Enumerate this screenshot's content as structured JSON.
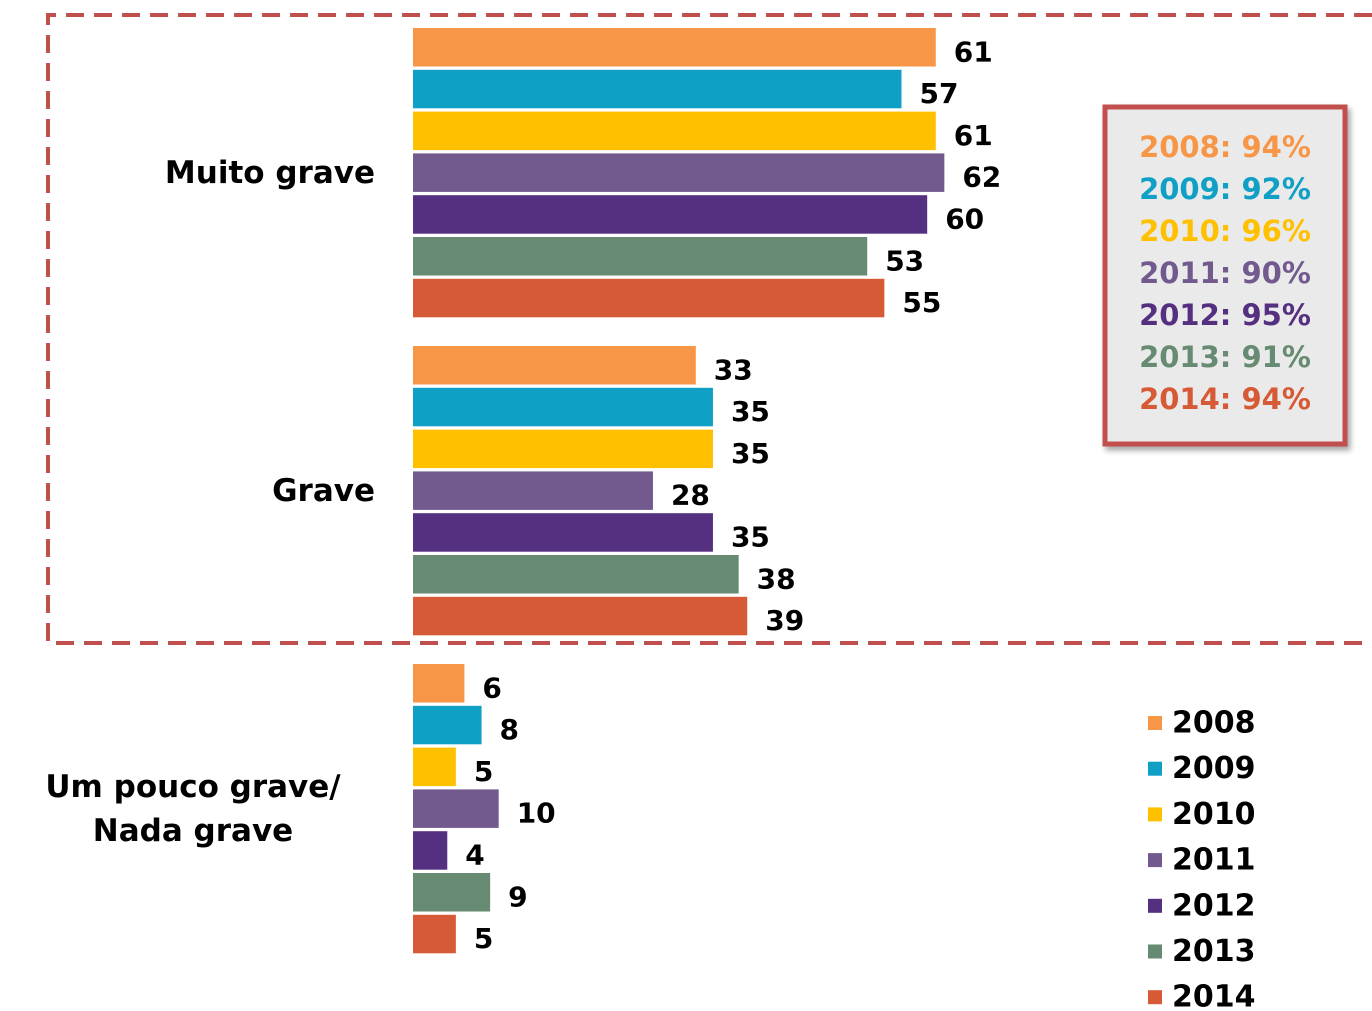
{
  "chart_data": {
    "type": "bar",
    "orientation": "horizontal",
    "categories": [
      [
        "Muito grave"
      ],
      [
        "Grave"
      ],
      [
        "Um pouco grave/",
        "Nada grave"
      ]
    ],
    "series": [
      {
        "name": "2008",
        "color": "#F79646",
        "values": [
          61,
          33,
          6
        ]
      },
      {
        "name": "2009",
        "color": "#10A0C6",
        "values": [
          57,
          35,
          8
        ]
      },
      {
        "name": "2010",
        "color": "#FFC000",
        "values": [
          61,
          35,
          5
        ]
      },
      {
        "name": "2011",
        "color": "#725A8E",
        "values": [
          62,
          28,
          10
        ]
      },
      {
        "name": "2012",
        "color": "#552F80",
        "values": [
          60,
          35,
          4
        ]
      },
      {
        "name": "2013",
        "color": "#668A72",
        "values": [
          53,
          38,
          9
        ]
      },
      {
        "name": "2014",
        "color": "#D65A35",
        "values": [
          55,
          39,
          5
        ]
      }
    ],
    "xlim": [
      0,
      100
    ],
    "annotations": [
      "2008: 94%",
      "2009: 92%",
      "2010: 96%",
      "2011: 90%",
      "2012: 95%",
      "2013: 91%",
      "2014: 94%"
    ]
  }
}
